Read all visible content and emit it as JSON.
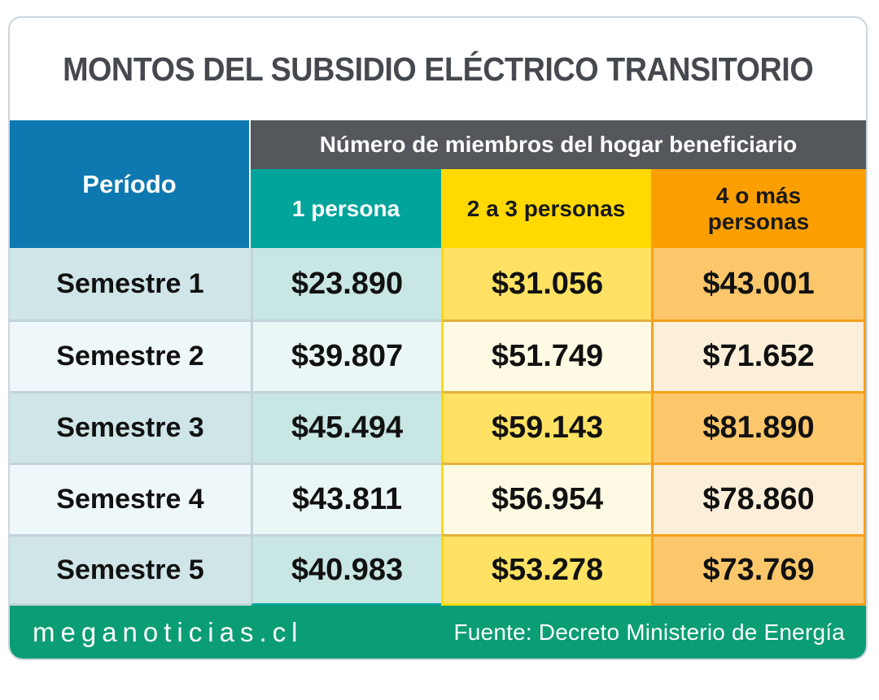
{
  "title": "MONTOS DEL SUBSIDIO ELÉCTRICO TRANSITORIO",
  "table": {
    "period_header": "Período",
    "group_header": "Número de miembros del hogar beneficiario",
    "columns": [
      "1 persona",
      "2 a 3 personas",
      "4 o más personas"
    ],
    "rows": [
      {
        "period": "Semestre 1",
        "values": [
          "$23.890",
          "$31.056",
          "$43.001"
        ]
      },
      {
        "period": "Semestre 2",
        "values": [
          "$39.807",
          "$51.749",
          "$71.652"
        ]
      },
      {
        "period": "Semestre 3",
        "values": [
          "$45.494",
          "$59.143",
          "$81.890"
        ]
      },
      {
        "period": "Semestre 4",
        "values": [
          "$43.811",
          "$56.954",
          "$78.860"
        ]
      },
      {
        "period": "Semestre 5",
        "values": [
          "$40.983",
          "$53.278",
          "$73.769"
        ]
      }
    ]
  },
  "footer": {
    "brand": "meganoticias.cl",
    "source": "Fuente: Decreto Ministerio de Energía"
  },
  "colors": {
    "accent_blue": "#0e78b1",
    "header_gray": "#54575c",
    "accent_teal": "#00a49b",
    "accent_yellow": "#ffd900",
    "accent_orange": "#fb9f00",
    "footer_green": "#0b9d74",
    "title_gray": "#45494e",
    "card_border": "#c9d6df"
  },
  "chart_data": {
    "type": "table",
    "title": "MONTOS DEL SUBSIDIO ELÉCTRICO TRANSITORIO",
    "row_header": "Período",
    "column_group_header": "Número de miembros del hogar beneficiario",
    "columns": [
      "1 persona",
      "2 a 3 personas",
      "4 o más personas"
    ],
    "row_labels": [
      "Semestre 1",
      "Semestre 2",
      "Semestre 3",
      "Semestre 4",
      "Semestre 5"
    ],
    "values_clp": [
      [
        23890,
        31056,
        43001
      ],
      [
        39807,
        51749,
        71652
      ],
      [
        45494,
        59143,
        81890
      ],
      [
        43811,
        56954,
        78860
      ],
      [
        40983,
        53278,
        73769
      ]
    ],
    "source": "Fuente: Decreto Ministerio de Energía",
    "brand": "meganoticias.cl"
  }
}
